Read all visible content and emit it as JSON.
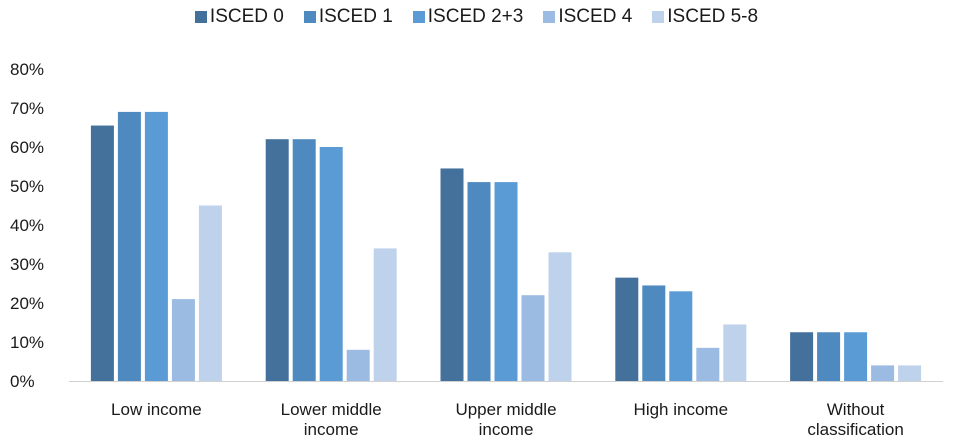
{
  "chart_data": {
    "type": "bar",
    "categories": [
      [
        "Low income"
      ],
      [
        "Lower middle",
        "income"
      ],
      [
        "Upper middle",
        "income"
      ],
      [
        "High income"
      ],
      [
        "Without",
        "classification"
      ]
    ],
    "series": [
      {
        "name": "ISCED 0",
        "color": "#44709c",
        "values": [
          65.5,
          62,
          54.5,
          26.5,
          12.5
        ]
      },
      {
        "name": "ISCED 1",
        "color": "#4e89c0",
        "values": [
          69,
          62,
          51,
          24.5,
          12.5
        ]
      },
      {
        "name": "ISCED 2+3",
        "color": "#5b9bd5",
        "values": [
          69,
          60,
          51,
          23,
          12.5
        ]
      },
      {
        "name": "ISCED 4",
        "color": "#9bbbe2",
        "values": [
          21,
          8,
          22,
          8.5,
          4
        ]
      },
      {
        "name": "ISCED 5-8",
        "color": "#bed2ec",
        "values": [
          45,
          34,
          33,
          14.5,
          4
        ]
      }
    ],
    "yticks": [
      "0%",
      "10%",
      "20%",
      "30%",
      "40%",
      "50%",
      "60%",
      "70%",
      "80%"
    ],
    "ylim": [
      0,
      80
    ],
    "legend_position": "top",
    "grid": false
  }
}
